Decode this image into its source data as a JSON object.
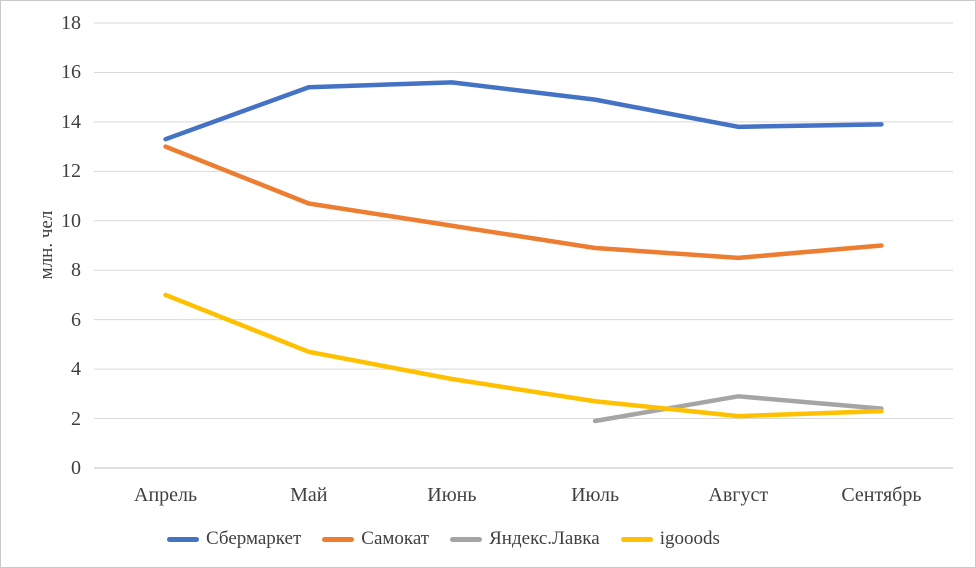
{
  "chart_data": {
    "type": "line",
    "title": "",
    "xlabel": "",
    "ylabel": "млн. чел",
    "categories": [
      "Апрель",
      "Май",
      "Июнь",
      "Июль",
      "Август",
      "Сентябрь"
    ],
    "y_ticks": [
      0,
      2,
      4,
      6,
      8,
      10,
      12,
      14,
      16,
      18
    ],
    "ylim": [
      0,
      18
    ],
    "grid": true,
    "legend_position": "bottom",
    "series": [
      {
        "name": "Сбермаркет",
        "color": "#4472C4",
        "values": [
          13.3,
          15.4,
          15.6,
          14.9,
          13.8,
          13.9
        ]
      },
      {
        "name": "Самокат",
        "color": "#ED7D31",
        "values": [
          13.0,
          10.7,
          9.8,
          8.9,
          8.5,
          9.0
        ]
      },
      {
        "name": "Яндекс.Лавка",
        "color": "#A5A5A5",
        "values": [
          null,
          null,
          null,
          1.9,
          2.9,
          2.4
        ]
      },
      {
        "name": "igooods",
        "color": "#FFC000",
        "values": [
          7.0,
          4.7,
          3.6,
          2.7,
          2.1,
          2.3
        ]
      }
    ]
  },
  "colors": {
    "gridline": "#D9D9D9",
    "zero_axis_line": "#BFBFBF",
    "text": "#404040",
    "border": "#C9C9C9",
    "background": "#FFFFFF"
  }
}
